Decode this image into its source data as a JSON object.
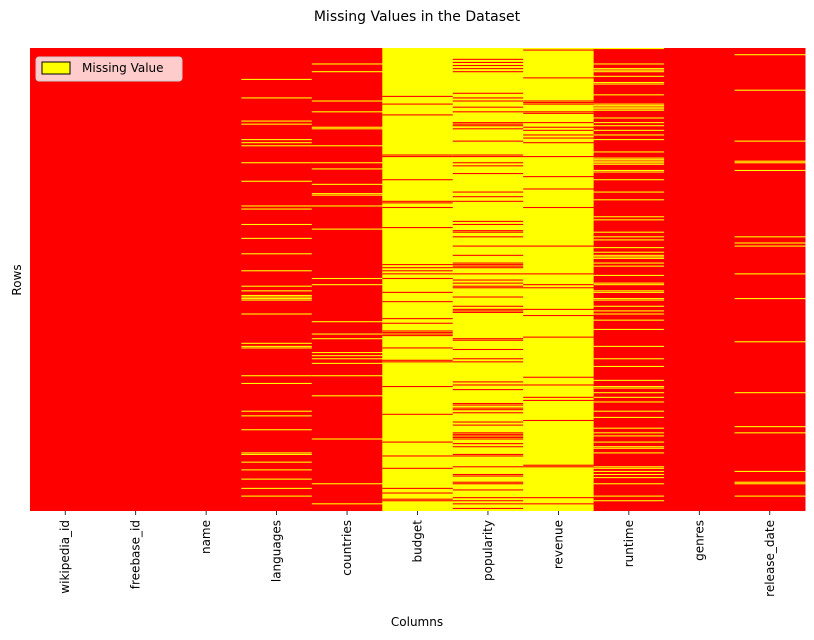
{
  "chart_data": {
    "type": "heatmap",
    "title": "Missing Values in the Dataset",
    "xlabel": "Columns",
    "ylabel": "Rows",
    "columns": [
      "wikipedia_id",
      "freebase_id",
      "name",
      "languages",
      "countries",
      "budget",
      "popularity",
      "revenue",
      "runtime",
      "genres",
      "release_date"
    ],
    "missing_fraction": [
      0.0,
      0.0,
      0.0,
      0.16,
      0.08,
      0.91,
      0.72,
      0.9,
      0.25,
      0.0,
      0.08
    ],
    "colors": {
      "present": "#ff0000",
      "missing": "#ffff00"
    },
    "legend": {
      "label": "Missing Value",
      "placement": "top-left"
    },
    "grid": false
  }
}
